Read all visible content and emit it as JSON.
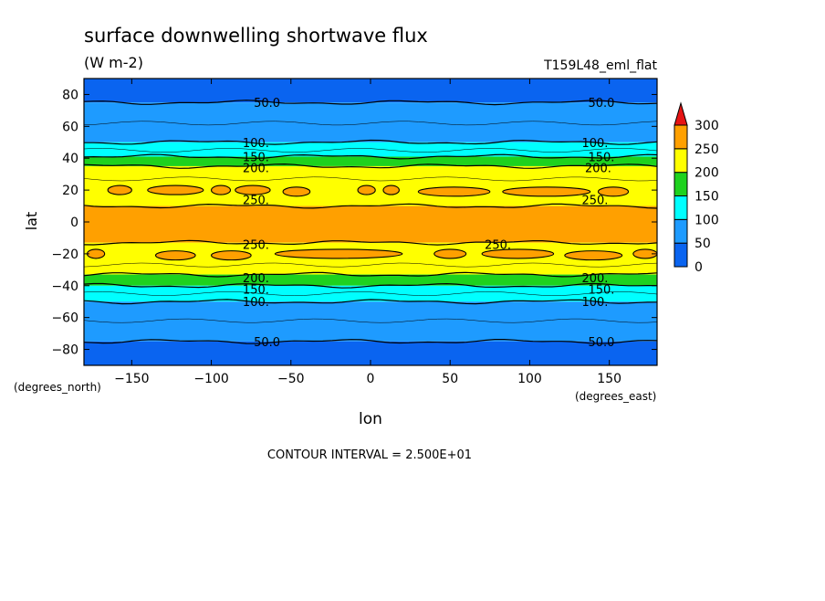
{
  "chart_data": {
    "type": "heatmap",
    "title": "surface downwelling shortwave flux",
    "subtitle": "(W m-2)",
    "run_label": "T159L48_eml_flat",
    "xlabel": "lon",
    "ylabel": "lat",
    "x_units": "(degrees_east)",
    "y_units": "(degrees_north)",
    "xlim": [
      -180,
      180
    ],
    "ylim": [
      -90,
      90
    ],
    "x_ticks": [
      -150,
      -100,
      -50,
      0,
      50,
      100,
      150
    ],
    "y_ticks": [
      80,
      60,
      40,
      20,
      0,
      -20,
      -40,
      -60,
      -80
    ],
    "footer": "CONTOUR INTERVAL = 2.500E+01",
    "colorbar": {
      "levels": [
        0,
        50,
        100,
        150,
        200,
        250,
        300
      ],
      "colors": [
        "#0a64f0",
        "#1e9bff",
        "#00ffff",
        "#1ed21e",
        "#ffff00",
        "#ffa000",
        "#e61414"
      ]
    },
    "zonal_bands": [
      {
        "lat_from": 90,
        "lat_to": 75,
        "value": "0-50"
      },
      {
        "lat_from": 75,
        "lat_to": 50,
        "value": "50-100"
      },
      {
        "lat_from": 50,
        "lat_to": 41,
        "value": "100-150"
      },
      {
        "lat_from": 41,
        "lat_to": 35,
        "value": "150-200"
      },
      {
        "lat_from": 35,
        "lat_to": 10,
        "value": "200-250"
      },
      {
        "lat_from": 10,
        "lat_to": -13,
        "value": "250-300"
      },
      {
        "lat_from": -13,
        "lat_to": -33,
        "value": "200-250"
      },
      {
        "lat_from": -33,
        "lat_to": -40,
        "value": "150-200"
      },
      {
        "lat_from": -40,
        "lat_to": -50,
        "value": "100-150"
      },
      {
        "lat_from": -50,
        "lat_to": -75,
        "value": "50-100"
      },
      {
        "lat_from": -75,
        "lat_to": -90,
        "value": "0-50"
      }
    ],
    "contour_labels": [
      {
        "text": "50.0",
        "lon": -65,
        "lat": 75
      },
      {
        "text": "50.0",
        "lon": 145,
        "lat": 75
      },
      {
        "text": "100.",
        "lon": -72,
        "lat": 50
      },
      {
        "text": "100.",
        "lon": 141,
        "lat": 50
      },
      {
        "text": "150.",
        "lon": -72,
        "lat": 41
      },
      {
        "text": "150.",
        "lon": 145,
        "lat": 41
      },
      {
        "text": "200.",
        "lon": -72,
        "lat": 34
      },
      {
        "text": "200.",
        "lon": 143,
        "lat": 34
      },
      {
        "text": "250.",
        "lon": -72,
        "lat": 14
      },
      {
        "text": "250.",
        "lon": 141,
        "lat": 14
      },
      {
        "text": "250.",
        "lon": -72,
        "lat": -14
      },
      {
        "text": "250.",
        "lon": 80,
        "lat": -14
      },
      {
        "text": "200.",
        "lon": -72,
        "lat": -35
      },
      {
        "text": "200.",
        "lon": 141,
        "lat": -35
      },
      {
        "text": "150.",
        "lon": -72,
        "lat": -42
      },
      {
        "text": "150.",
        "lon": 145,
        "lat": -42
      },
      {
        "text": "100.",
        "lon": -72,
        "lat": -50
      },
      {
        "text": "100.",
        "lon": 141,
        "lat": -50
      },
      {
        "text": "50.0",
        "lon": -65,
        "lat": -75
      },
      {
        "text": "50.0",
        "lon": 145,
        "lat": -75
      }
    ],
    "islands_250": [
      {
        "lon0": -165,
        "lon1": -150,
        "lat": 20
      },
      {
        "lon0": -140,
        "lon1": -105,
        "lat": 20
      },
      {
        "lon0": -100,
        "lon1": -88,
        "lat": 20
      },
      {
        "lon0": -85,
        "lon1": -63,
        "lat": 20
      },
      {
        "lon0": -55,
        "lon1": -38,
        "lat": 19
      },
      {
        "lon0": -8,
        "lon1": 3,
        "lat": 20
      },
      {
        "lon0": 8,
        "lon1": 18,
        "lat": 20
      },
      {
        "lon0": 30,
        "lon1": 75,
        "lat": 19
      },
      {
        "lon0": 83,
        "lon1": 138,
        "lat": 19
      },
      {
        "lon0": 143,
        "lon1": 162,
        "lat": 19
      },
      {
        "lon0": -178,
        "lon1": -167,
        "lat": -20
      },
      {
        "lon0": -135,
        "lon1": -110,
        "lat": -21
      },
      {
        "lon0": -100,
        "lon1": -75,
        "lat": -21
      },
      {
        "lon0": -60,
        "lon1": 20,
        "lat": -20
      },
      {
        "lon0": 40,
        "lon1": 60,
        "lat": -20
      },
      {
        "lon0": 70,
        "lon1": 115,
        "lat": -20
      },
      {
        "lon0": 122,
        "lon1": 158,
        "lat": -21
      },
      {
        "lon0": 165,
        "lon1": 180,
        "lat": -20
      }
    ]
  }
}
